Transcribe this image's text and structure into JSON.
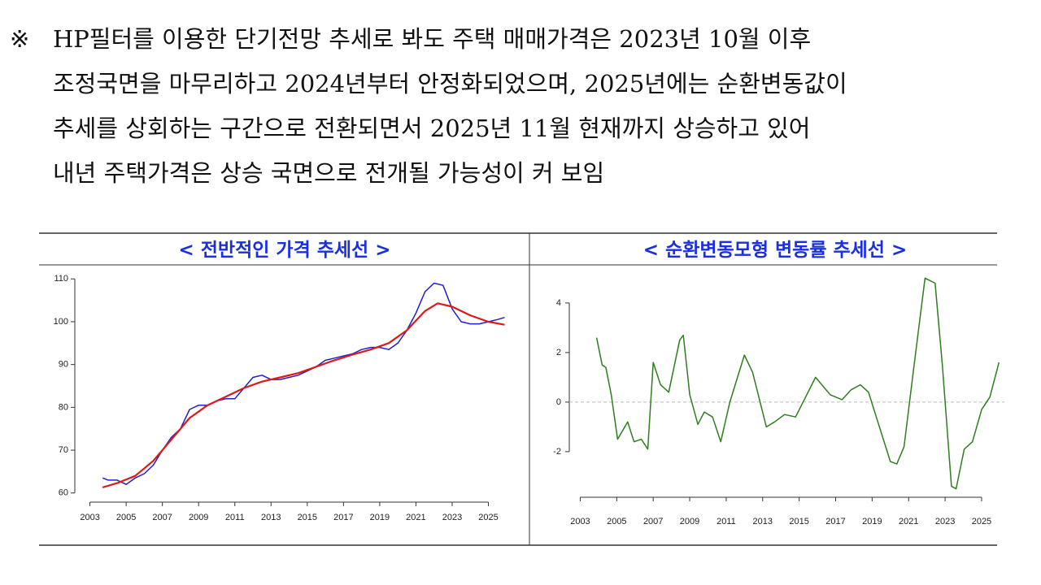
{
  "note": {
    "symbol": "※",
    "lines": [
      "HP필터를 이용한 단기전망 추세로 봐도 주택 매매가격은 2023년 10월 이후",
      "조정국면을 마무리하고 2024년부터 안정화되었으며, 2025년에는 순환변동값이",
      "추세를 상회하는 구간으로 전환되면서 2025년 11월 현재까지 상승하고 있어",
      "내년 주택가격은 상승 국면으로 전개될 가능성이 커 보임"
    ]
  },
  "chart_data": [
    {
      "type": "line",
      "title": "< 전반적인 가격 추세선 >",
      "xlim": [
        2002.3,
        2026.1
      ],
      "xticks": [
        2003,
        2005,
        2007,
        2009,
        2011,
        2013,
        2015,
        2017,
        2019,
        2021,
        2023,
        2025
      ],
      "ylim": [
        59,
        111
      ],
      "yticks": [
        60,
        70,
        80,
        90,
        100,
        110
      ],
      "series": [
        {
          "color": "#1f1fd0",
          "x": [
            2003.7,
            2004.0,
            2004.5,
            2005.0,
            2005.5,
            2006.0,
            2006.5,
            2007.0,
            2007.5,
            2008.0,
            2008.5,
            2009.0,
            2009.5,
            2010.0,
            2010.5,
            2011.0,
            2011.5,
            2012.0,
            2012.5,
            2013.0,
            2013.5,
            2014.0,
            2014.5,
            2015.0,
            2015.5,
            2016.0,
            2016.5,
            2017.0,
            2017.5,
            2018.0,
            2018.5,
            2019.0,
            2019.5,
            2020.0,
            2020.5,
            2021.0,
            2021.5,
            2022.0,
            2022.5,
            2023.0,
            2023.5,
            2024.0,
            2024.5,
            2025.0,
            2025.5,
            2025.9
          ],
          "values": [
            63.5,
            63,
            63,
            62,
            63.5,
            64.5,
            66.5,
            70,
            73,
            75,
            79.5,
            80.5,
            80.5,
            81.5,
            82,
            82,
            84.5,
            87,
            87.5,
            86.5,
            86.5,
            87,
            87.5,
            88.5,
            89.5,
            91,
            91.5,
            92,
            92.5,
            93.5,
            94,
            94,
            93.5,
            95,
            98,
            102,
            107,
            109,
            108.5,
            103,
            100,
            99.5,
            99.5,
            100,
            100.5,
            101
          ]
        },
        {
          "color": "#e01818",
          "x": [
            2003.7,
            2004.5,
            2005.5,
            2006.5,
            2007.5,
            2008.5,
            2009.5,
            2010.5,
            2011.5,
            2012.5,
            2013.5,
            2014.5,
            2015.5,
            2016.5,
            2017.5,
            2018.5,
            2019.5,
            2020.5,
            2021.5,
            2022.2,
            2023.0,
            2024.0,
            2025.0,
            2025.9
          ],
          "values": [
            61.3,
            62.3,
            64,
            67.5,
            72.5,
            77.5,
            80.5,
            82.5,
            84.5,
            86,
            87,
            88,
            89.5,
            91,
            92.3,
            93.5,
            95,
            98,
            102.5,
            104.3,
            103.5,
            101.5,
            100,
            99.3
          ]
        }
      ]
    },
    {
      "type": "line",
      "title": "< 순환변동모형 변동률 추세선 >",
      "xlim": [
        2002.4,
        2026.25
      ],
      "xticks": [
        2003,
        2005,
        2007,
        2009,
        2011,
        2013,
        2015,
        2017,
        2019,
        2021,
        2023,
        2025
      ],
      "ylim": [
        -3.84,
        5.08
      ],
      "yticks": [
        -2,
        0,
        2,
        4
      ],
      "reference_line": 0,
      "series": [
        {
          "color": "#2e7d1e",
          "x": [
            2003.9,
            2004.2,
            2004.4,
            2004.7,
            2005.05,
            2005.6,
            2005.95,
            2006.35,
            2006.7,
            2007.0,
            2007.4,
            2007.85,
            2008.45,
            2008.65,
            2009.0,
            2009.45,
            2009.8,
            2010.25,
            2010.7,
            2011.2,
            2012.0,
            2012.45,
            2013.2,
            2013.65,
            2014.2,
            2014.8,
            2015.35,
            2015.9,
            2016.7,
            2017.35,
            2017.85,
            2018.35,
            2018.8,
            2019.1,
            2020.0,
            2020.35,
            2020.75,
            2021.3,
            2021.9,
            2022.45,
            2022.85,
            2023.35,
            2023.6,
            2024.05,
            2024.5,
            2025.0,
            2025.45,
            2025.95
          ],
          "values": [
            2.6,
            1.5,
            1.4,
            0.3,
            -1.5,
            -0.8,
            -1.6,
            -1.5,
            -1.9,
            1.6,
            0.7,
            0.4,
            2.5,
            2.7,
            0.3,
            -0.9,
            -0.4,
            -0.6,
            -1.6,
            0,
            1.9,
            1.2,
            -1.0,
            -0.8,
            -0.5,
            -0.6,
            0.2,
            1.0,
            0.3,
            0.1,
            0.5,
            0.7,
            0.4,
            -0.3,
            -2.4,
            -2.5,
            -1.8,
            1.5,
            5.0,
            4.8,
            1.5,
            -3.4,
            -3.5,
            -1.9,
            -1.6,
            -0.3,
            0.2,
            1.6
          ]
        }
      ]
    }
  ]
}
